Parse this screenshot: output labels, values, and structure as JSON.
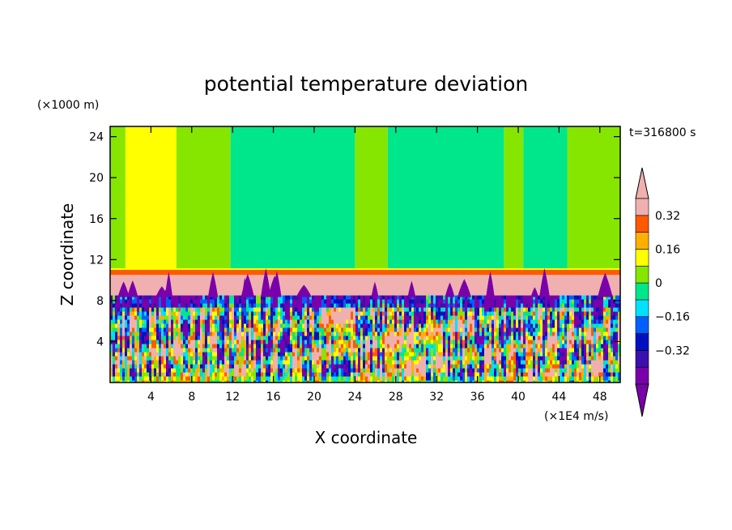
{
  "chart_data": {
    "type": "heatmap",
    "title": "potential temperature deviation",
    "xlabel": "X coordinate",
    "ylabel": "Z coordinate",
    "x_unit_label": "(×1E4 m/s)",
    "y_unit_label": "(×1000 m)",
    "time_label": "t=316800 s",
    "xlim": [
      0,
      50
    ],
    "ylim": [
      0,
      25
    ],
    "x_ticks": [
      4,
      8,
      12,
      16,
      20,
      24,
      28,
      32,
      36,
      40,
      44,
      48
    ],
    "y_ticks": [
      4,
      8,
      12,
      16,
      20,
      24
    ],
    "colorbar": {
      "levels": [
        -0.48,
        -0.4,
        -0.32,
        -0.24,
        -0.16,
        -0.08,
        0,
        0.08,
        0.16,
        0.24,
        0.32,
        0.4
      ],
      "tick_labels": [
        "0.32",
        "0.16",
        "0",
        "−0.16",
        "−0.32"
      ],
      "tick_values": [
        0.32,
        0.16,
        0,
        -0.16,
        -0.32
      ],
      "colors": [
        "#7a00aa",
        "#3a10b0",
        "#0010c0",
        "#0060ff",
        "#00e0ff",
        "#00e68a",
        "#86e600",
        "#ffff00",
        "#ffb000",
        "#ff5a00",
        "#f0b0b0"
      ],
      "under_color": "#7a00aa",
      "over_color": "#f0b0b0"
    },
    "regions": {
      "upper_layer": {
        "z_range": [
          11,
          25
        ],
        "columns": [
          {
            "x": [
              0,
              1.5
            ],
            "value": 0.04
          },
          {
            "x": [
              1.5,
              6.5
            ],
            "value": 0.12
          },
          {
            "x": [
              6.5,
              11.8
            ],
            "value": 0.04
          },
          {
            "x": [
              11.8,
              24
            ],
            "value": -0.04
          },
          {
            "x": [
              24,
              27.2
            ],
            "value": 0.04
          },
          {
            "x": [
              27.2,
              38.6
            ],
            "value": -0.04
          },
          {
            "x": [
              38.6,
              40.5
            ],
            "value": 0.04
          },
          {
            "x": [
              40.5,
              44.8
            ],
            "value": -0.04
          },
          {
            "x": [
              44.8,
              50
            ],
            "value": 0.04
          }
        ]
      },
      "inversion_band": {
        "z_range": [
          10.5,
          11.0
        ],
        "value": 0.3
      },
      "pink_layer": {
        "z_range": [
          8.5,
          10.5
        ],
        "value": 0.44
      },
      "turbulent_layer": {
        "z_range": [
          0,
          8.5
        ],
        "value_range": [
          -0.48,
          0.44
        ]
      }
    }
  }
}
